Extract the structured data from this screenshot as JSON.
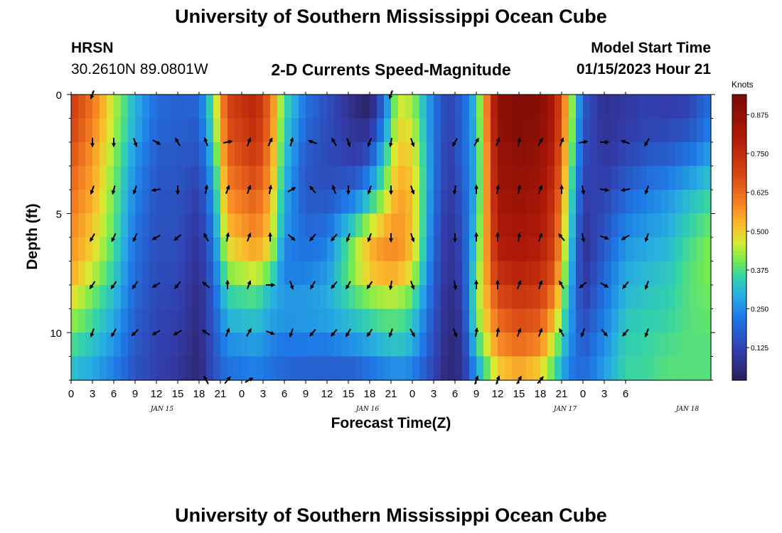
{
  "title_top": "University of Southern Mississippi Ocean Cube",
  "title_bottom": "University of Southern Mississippi Ocean Cube",
  "station": {
    "name": "HRSN",
    "coords": "30.2610N  89.0801W"
  },
  "chart_title": "2-D Currents Speed-Magnitude",
  "model_start": {
    "label": "Model Start Time",
    "value": "01/15/2023 Hour 21"
  },
  "chart_data": {
    "type": "heatmap",
    "title": "2-D Currents Speed-Magnitude",
    "xlabel": "Forecast Time(Z)",
    "ylabel": "Depth (ft)",
    "x_hours_from_jan15_00": [
      0,
      90
    ],
    "y_range_ft": [
      0,
      12
    ],
    "x_tick_labels": [
      "0",
      "3",
      "6",
      "9",
      "12",
      "15",
      "18",
      "21",
      "0",
      "3",
      "6",
      "9",
      "12",
      "15",
      "18",
      "21",
      "0",
      "3",
      "6",
      "9",
      "12",
      "15",
      "18",
      "21",
      "0",
      "3",
      "6"
    ],
    "y_tick_labels": [
      "0",
      "5",
      "10"
    ],
    "date_labels": [
      {
        "text": "JAN 15",
        "hour": 12.8
      },
      {
        "text": "JAN 16",
        "hour": 41.7
      },
      {
        "text": "JAN 17",
        "hour": 69.5
      },
      {
        "text": "JAN 18",
        "hour": 86.7
      }
    ],
    "colorbar": {
      "label": "Knots",
      "range": [
        0.02,
        0.94
      ],
      "ticks": [
        "0.125",
        "0.250",
        "0.375",
        "0.500",
        "0.625",
        "0.750",
        "0.875"
      ]
    },
    "depth_levels_ft": [
      0,
      1,
      2,
      3,
      4,
      5,
      6,
      7,
      8,
      9,
      10,
      11,
      12
    ],
    "speed_profiles": [
      {
        "hour": 0,
        "speed": [
          0.72,
          0.7,
          0.68,
          0.65,
          0.62,
          0.6,
          0.58,
          0.56,
          0.52,
          0.45,
          0.4,
          0.35,
          0.3
        ]
      },
      {
        "hour": 3,
        "speed": [
          0.62,
          0.6,
          0.58,
          0.55,
          0.55,
          0.52,
          0.5,
          0.48,
          0.42,
          0.38,
          0.35,
          0.3,
          0.28
        ]
      },
      {
        "hour": 6,
        "speed": [
          0.45,
          0.45,
          0.43,
          0.42,
          0.4,
          0.4,
          0.38,
          0.36,
          0.33,
          0.3,
          0.28,
          0.25,
          0.22
        ]
      },
      {
        "hour": 9,
        "speed": [
          0.3,
          0.3,
          0.28,
          0.25,
          0.25,
          0.22,
          0.22,
          0.2,
          0.2,
          0.18,
          0.17,
          0.16,
          0.15
        ]
      },
      {
        "hour": 12,
        "speed": [
          0.2,
          0.2,
          0.18,
          0.17,
          0.16,
          0.15,
          0.15,
          0.14,
          0.14,
          0.13,
          0.13,
          0.12,
          0.12
        ]
      },
      {
        "hour": 15,
        "speed": [
          0.18,
          0.18,
          0.17,
          0.16,
          0.16,
          0.15,
          0.15,
          0.14,
          0.13,
          0.12,
          0.11,
          0.1,
          0.09
        ]
      },
      {
        "hour": 18,
        "speed": [
          0.2,
          0.18,
          0.16,
          0.14,
          0.12,
          0.1,
          0.09,
          0.08,
          0.07,
          0.06,
          0.06,
          0.05,
          0.05
        ]
      },
      {
        "hour": 20,
        "speed": [
          0.4,
          0.38,
          0.35,
          0.3,
          0.28,
          0.25,
          0.22,
          0.2,
          0.18,
          0.17,
          0.16,
          0.15,
          0.15
        ]
      },
      {
        "hour": 22,
        "speed": [
          0.7,
          0.68,
          0.65,
          0.62,
          0.58,
          0.55,
          0.5,
          0.45,
          0.38,
          0.32,
          0.28,
          0.22,
          0.2
        ]
      },
      {
        "hour": 26,
        "speed": [
          0.78,
          0.76,
          0.74,
          0.7,
          0.66,
          0.62,
          0.58,
          0.52,
          0.4,
          0.35,
          0.3,
          0.25,
          0.22
        ]
      },
      {
        "hour": 28,
        "speed": [
          0.62,
          0.62,
          0.6,
          0.58,
          0.55,
          0.52,
          0.5,
          0.45,
          0.32,
          0.3,
          0.26,
          0.22,
          0.2
        ]
      },
      {
        "hour": 30,
        "speed": [
          0.38,
          0.36,
          0.34,
          0.32,
          0.3,
          0.28,
          0.26,
          0.22,
          0.25,
          0.28,
          0.24,
          0.2,
          0.18
        ]
      },
      {
        "hour": 33,
        "speed": [
          0.22,
          0.2,
          0.18,
          0.16,
          0.16,
          0.18,
          0.2,
          0.22,
          0.25,
          0.28,
          0.25,
          0.2,
          0.17
        ]
      },
      {
        "hour": 36,
        "speed": [
          0.15,
          0.15,
          0.14,
          0.14,
          0.15,
          0.18,
          0.22,
          0.25,
          0.28,
          0.3,
          0.25,
          0.2,
          0.16
        ]
      },
      {
        "hour": 40,
        "speed": [
          0.06,
          0.07,
          0.1,
          0.12,
          0.2,
          0.3,
          0.4,
          0.45,
          0.4,
          0.35,
          0.3,
          0.22,
          0.15
        ]
      },
      {
        "hour": 42,
        "speed": [
          0.02,
          0.05,
          0.12,
          0.18,
          0.3,
          0.38,
          0.5,
          0.55,
          0.45,
          0.38,
          0.32,
          0.25,
          0.18
        ]
      },
      {
        "hour": 44,
        "speed": [
          0.18,
          0.22,
          0.28,
          0.35,
          0.4,
          0.48,
          0.56,
          0.58,
          0.48,
          0.4,
          0.35,
          0.28,
          0.2
        ]
      },
      {
        "hour": 46,
        "speed": [
          0.45,
          0.48,
          0.5,
          0.52,
          0.55,
          0.56,
          0.58,
          0.58,
          0.48,
          0.4,
          0.36,
          0.3,
          0.22
        ]
      },
      {
        "hour": 48,
        "speed": [
          0.42,
          0.45,
          0.48,
          0.5,
          0.52,
          0.52,
          0.52,
          0.5,
          0.42,
          0.36,
          0.32,
          0.28,
          0.2
        ]
      },
      {
        "hour": 51,
        "speed": [
          0.22,
          0.22,
          0.22,
          0.22,
          0.22,
          0.2,
          0.2,
          0.18,
          0.18,
          0.16,
          0.15,
          0.14,
          0.12
        ]
      },
      {
        "hour": 53,
        "speed": [
          0.12,
          0.12,
          0.11,
          0.1,
          0.1,
          0.09,
          0.08,
          0.08,
          0.07,
          0.06,
          0.06,
          0.05,
          0.05
        ]
      },
      {
        "hour": 55,
        "speed": [
          0.18,
          0.18,
          0.18,
          0.18,
          0.16,
          0.15,
          0.14,
          0.13,
          0.12,
          0.1,
          0.09,
          0.08,
          0.08
        ]
      },
      {
        "hour": 57,
        "speed": [
          0.32,
          0.32,
          0.3,
          0.3,
          0.3,
          0.32,
          0.34,
          0.36,
          0.4,
          0.4,
          0.38,
          0.3,
          0.25
        ]
      },
      {
        "hour": 60,
        "speed": [
          0.88,
          0.88,
          0.86,
          0.85,
          0.84,
          0.82,
          0.8,
          0.78,
          0.7,
          0.65,
          0.6,
          0.55,
          0.45
        ]
      },
      {
        "hour": 63,
        "speed": [
          0.92,
          0.92,
          0.9,
          0.88,
          0.86,
          0.84,
          0.82,
          0.8,
          0.75,
          0.7,
          0.65,
          0.6,
          0.5
        ]
      },
      {
        "hour": 66,
        "speed": [
          0.9,
          0.9,
          0.88,
          0.86,
          0.84,
          0.82,
          0.8,
          0.78,
          0.72,
          0.68,
          0.62,
          0.55,
          0.45
        ]
      },
      {
        "hour": 68,
        "speed": [
          0.8,
          0.8,
          0.78,
          0.76,
          0.74,
          0.72,
          0.7,
          0.68,
          0.62,
          0.55,
          0.48,
          0.4,
          0.35
        ]
      },
      {
        "hour": 70,
        "speed": [
          0.5,
          0.5,
          0.48,
          0.45,
          0.42,
          0.4,
          0.38,
          0.35,
          0.32,
          0.3,
          0.28,
          0.25,
          0.22
        ]
      },
      {
        "hour": 72,
        "speed": [
          0.18,
          0.16,
          0.15,
          0.14,
          0.12,
          0.1,
          0.08,
          0.08,
          0.1,
          0.12,
          0.15,
          0.18,
          0.2
        ]
      },
      {
        "hour": 75,
        "speed": [
          0.08,
          0.08,
          0.09,
          0.1,
          0.12,
          0.14,
          0.16,
          0.18,
          0.2,
          0.22,
          0.24,
          0.26,
          0.28
        ]
      },
      {
        "hour": 78,
        "speed": [
          0.1,
          0.1,
          0.12,
          0.14,
          0.18,
          0.22,
          0.25,
          0.28,
          0.3,
          0.32,
          0.34,
          0.35,
          0.36
        ]
      },
      {
        "hour": 81,
        "speed": [
          0.12,
          0.12,
          0.14,
          0.18,
          0.22,
          0.25,
          0.28,
          0.3,
          0.32,
          0.34,
          0.35,
          0.36,
          0.36
        ]
      },
      {
        "hour": 84,
        "speed": [
          0.1,
          0.12,
          0.15,
          0.2,
          0.25,
          0.28,
          0.3,
          0.32,
          0.34,
          0.35,
          0.36,
          0.38,
          0.38
        ]
      },
      {
        "hour": 87,
        "speed": [
          0.12,
          0.14,
          0.18,
          0.24,
          0.3,
          0.34,
          0.36,
          0.38,
          0.38,
          0.38,
          0.38,
          0.38,
          0.38
        ]
      },
      {
        "hour": 90,
        "speed": [
          0.2,
          0.22,
          0.25,
          0.3,
          0.35,
          0.38,
          0.4,
          0.42,
          0.4,
          0.4,
          0.38,
          0.38,
          0.38
        ]
      }
    ],
    "vectors": [
      {
        "hour": 3,
        "depths": [
          0,
          2,
          4,
          6,
          8,
          10
        ],
        "dir": [
          200,
          180,
          200,
          210,
          215,
          200
        ]
      },
      {
        "hour": 6,
        "depths": [
          2,
          4,
          6,
          8,
          10
        ],
        "dir": [
          180,
          195,
          205,
          215,
          210
        ]
      },
      {
        "hour": 9,
        "depths": [
          2,
          4,
          6,
          8,
          10
        ],
        "dir": [
          160,
          200,
          205,
          215,
          225
        ]
      },
      {
        "hour": 12,
        "depths": [
          2,
          4,
          6,
          8,
          10
        ],
        "dir": [
          120,
          260,
          240,
          240,
          240
        ]
      },
      {
        "hour": 15,
        "depths": [
          2,
          4,
          6,
          8,
          10
        ],
        "dir": [
          330,
          180,
          230,
          220,
          240
        ]
      },
      {
        "hour": 19,
        "depths": [
          2,
          4,
          6,
          8,
          10,
          12
        ],
        "dir": [
          340,
          10,
          330,
          310,
          305,
          330
        ]
      },
      {
        "hour": 22,
        "depths": [
          2,
          4,
          6,
          8,
          10,
          12
        ],
        "dir": [
          80,
          20,
          10,
          0,
          20,
          40
        ]
      },
      {
        "hour": 25,
        "depths": [
          2,
          4,
          6,
          8,
          10,
          12
        ],
        "dir": [
          20,
          20,
          20,
          20,
          30,
          60
        ]
      },
      {
        "hour": 28,
        "depths": [
          2,
          4,
          6,
          8,
          10
        ],
        "dir": [
          25,
          10,
          0,
          90,
          110
        ]
      },
      {
        "hour": 31,
        "depths": [
          2,
          4,
          6,
          8,
          10
        ],
        "dir": [
          15,
          60,
          130,
          160,
          200
        ]
      },
      {
        "hour": 34,
        "depths": [
          2,
          4,
          6,
          8,
          10
        ],
        "dir": [
          290,
          320,
          220,
          210,
          220
        ]
      },
      {
        "hour": 37,
        "depths": [
          2,
          4,
          6,
          8,
          10
        ],
        "dir": [
          330,
          340,
          220,
          220,
          220
        ]
      },
      {
        "hour": 39,
        "depths": [
          2,
          4,
          6,
          8,
          10
        ],
        "dir": [
          160,
          180,
          200,
          210,
          210
        ]
      },
      {
        "hour": 42,
        "depths": [
          2,
          4,
          6,
          8,
          10
        ],
        "dir": [
          200,
          200,
          200,
          215,
          215
        ]
      },
      {
        "hour": 45,
        "depths": [
          0,
          2,
          4,
          6,
          8,
          10
        ],
        "dir": [
          200,
          190,
          180,
          180,
          190,
          200
        ]
      },
      {
        "hour": 48,
        "depths": [
          2,
          4,
          6,
          8,
          10
        ],
        "dir": [
          160,
          160,
          160,
          160,
          150
        ]
      },
      {
        "hour": 54,
        "depths": [
          2,
          4,
          6,
          8,
          10
        ],
        "dir": [
          210,
          190,
          180,
          170,
          160
        ]
      },
      {
        "hour": 57,
        "depths": [
          2,
          4,
          6,
          8,
          10,
          12
        ],
        "dir": [
          30,
          0,
          0,
          0,
          10,
          20
        ]
      },
      {
        "hour": 60,
        "depths": [
          2,
          4,
          6,
          8,
          10,
          12
        ],
        "dir": [
          20,
          10,
          0,
          0,
          10,
          20
        ]
      },
      {
        "hour": 63,
        "depths": [
          2,
          4,
          6,
          8,
          10,
          12
        ],
        "dir": [
          10,
          10,
          10,
          20,
          20,
          30
        ]
      },
      {
        "hour": 66,
        "depths": [
          2,
          4,
          6,
          8,
          10,
          12
        ],
        "dir": [
          30,
          20,
          20,
          20,
          20,
          40
        ]
      },
      {
        "hour": 69,
        "depths": [
          2,
          4,
          6,
          8,
          10
        ],
        "dir": [
          20,
          0,
          320,
          330,
          330
        ]
      },
      {
        "hour": 72,
        "depths": [
          2,
          4,
          6,
          8,
          10
        ],
        "dir": [
          80,
          170,
          170,
          230,
          200
        ]
      },
      {
        "hour": 75,
        "depths": [
          2,
          4,
          6,
          8,
          10
        ],
        "dir": [
          90,
          100,
          110,
          120,
          140
        ]
      },
      {
        "hour": 78,
        "depths": [
          2,
          4,
          6,
          8,
          10
        ],
        "dir": [
          290,
          260,
          240,
          220,
          220
        ]
      },
      {
        "hour": 81,
        "depths": [
          2,
          4,
          6,
          8,
          10
        ],
        "dir": [
          210,
          200,
          200,
          200,
          200
        ]
      }
    ]
  }
}
